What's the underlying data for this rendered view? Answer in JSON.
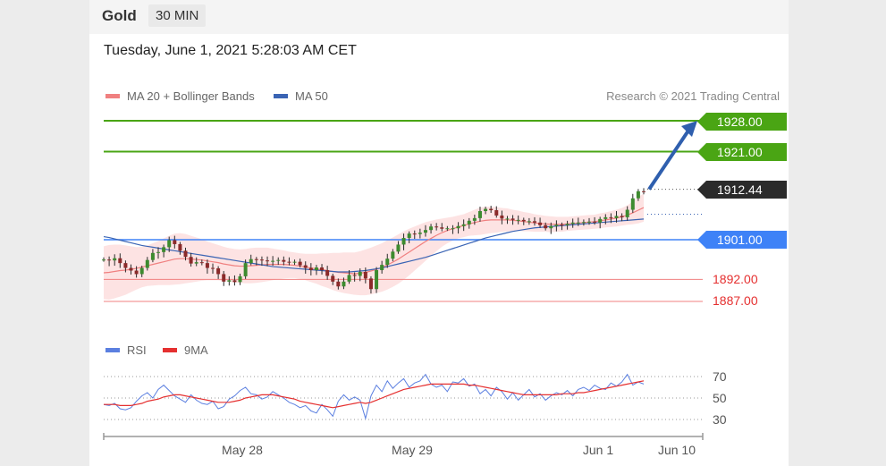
{
  "header": {
    "instrument": "Gold",
    "timeframe": "30 MIN",
    "datetime": "Tuesday, June 1, 2021 5:28:03 AM CET"
  },
  "legend": {
    "ma20": "MA 20 + Bollinger Bands",
    "ma50": "MA 50",
    "rsi": "RSI",
    "ma9": "9MA"
  },
  "credit": "Research © 2021 Trading Central",
  "colors": {
    "ma20": "#f08080",
    "ma50": "#3a64b4",
    "bollinger_fill": "#fde0e0",
    "resistance": "#4aa514",
    "support": "#3e82f7",
    "minor_support": "#f08080",
    "price_tag": "#2b2b2b",
    "arrow": "#2f5fae",
    "rsi": "#5b7fe0",
    "rsi_ma": "#e53030"
  },
  "levels": {
    "r2": "1928.00",
    "r1": "1921.00",
    "last": "1912.44",
    "pivot": "1901.00",
    "s1": "1892.00",
    "s2": "1887.00"
  },
  "chart_data": {
    "type": "candlestick",
    "ylim": [
      1885,
      1932
    ],
    "x_labels": [
      "May 28",
      "May 29",
      "Jun 1",
      "Jun 10"
    ],
    "price_path": [
      1896.5,
      1896.3,
      1896.8,
      1895.7,
      1894.6,
      1894.0,
      1893.2,
      1894.6,
      1896.4,
      1898.0,
      1898.2,
      1899.3,
      1900.9,
      1900.0,
      1898.5,
      1897.1,
      1895.6,
      1895.9,
      1895.7,
      1894.6,
      1894.5,
      1893.2,
      1891.5,
      1891.8,
      1891.4,
      1892.7,
      1895.7,
      1896.6,
      1896.5,
      1896.3,
      1896.1,
      1896.2,
      1896.4,
      1896.0,
      1895.9,
      1896.0,
      1895.2,
      1894.6,
      1894.1,
      1894.7,
      1894.1,
      1892.8,
      1891.5,
      1890.4,
      1891.5,
      1893.0,
      1892.8,
      1893.7,
      1892.2,
      1889.8,
      1894.1,
      1895.3,
      1896.7,
      1898.3,
      1899.9,
      1901.4,
      1902.4,
      1902.3,
      1902.6,
      1903.2,
      1904.0,
      1903.8,
      1903.5,
      1903.6,
      1903.6,
      1904.1,
      1904.5,
      1905.3,
      1905.9,
      1907.5,
      1908.0,
      1907.7,
      1906.5,
      1905.8,
      1905.8,
      1905.5,
      1905.5,
      1905.2,
      1905.2,
      1904.9,
      1904.3,
      1903.6,
      1904.1,
      1904.4,
      1904.3,
      1904.6,
      1904.9,
      1904.9,
      1905.0,
      1905.1,
      1904.9,
      1905.7,
      1906.1,
      1905.9,
      1906.4,
      1906.1,
      1907.8,
      1910.4,
      1912.0,
      1911.8
    ],
    "ma20": [
      1893.5,
      1893.6,
      1893.8,
      1894.0,
      1894.1,
      1894.3,
      1894.5,
      1894.8,
      1895.1,
      1895.4,
      1895.7,
      1896.0,
      1896.3,
      1896.6,
      1896.7,
      1896.7,
      1896.6,
      1896.5,
      1896.4,
      1896.2,
      1896.0,
      1895.8,
      1895.5,
      1895.3,
      1895.1,
      1895.0,
      1895.0,
      1895.1,
      1895.2,
      1895.3,
      1895.4,
      1895.4,
      1895.4,
      1895.4,
      1895.3,
      1895.2,
      1895.0,
      1894.8,
      1894.6,
      1894.4,
      1894.2,
      1894.0,
      1893.8,
      1893.6,
      1893.5,
      1893.4,
      1893.3,
      1893.4,
      1893.6,
      1893.9,
      1894.3,
      1894.7,
      1895.3,
      1895.9,
      1896.6,
      1897.4,
      1898.2,
      1899.0,
      1899.8,
      1900.6,
      1901.3,
      1902.0,
      1902.6,
      1903.1,
      1903.5,
      1903.9,
      1904.2,
      1904.6,
      1904.9,
      1905.2,
      1905.4,
      1905.5,
      1905.5,
      1905.5,
      1905.5,
      1905.4,
      1905.3,
      1905.1,
      1905.0,
      1904.8,
      1904.7,
      1904.6,
      1904.5,
      1904.5,
      1904.5,
      1904.6,
      1904.7,
      1904.8,
      1904.9,
      1905.0,
      1905.1,
      1905.3,
      1905.5,
      1905.7,
      1905.9,
      1906.2,
      1906.6,
      1907.1,
      1907.7,
      1908.3
    ],
    "ma50": [
      1901.7,
      1901.5,
      1901.2,
      1900.9,
      1900.6,
      1900.3,
      1900.0,
      1899.7,
      1899.5,
      1899.3,
      1899.1,
      1898.9,
      1898.7,
      1898.5,
      1898.3,
      1898.1,
      1897.9,
      1897.7,
      1897.5,
      1897.3,
      1897.1,
      1896.9,
      1896.7,
      1896.5,
      1896.3,
      1896.1,
      1895.9,
      1895.7,
      1895.5,
      1895.3,
      1895.1,
      1894.9,
      1894.8,
      1894.7,
      1894.6,
      1894.5,
      1894.4,
      1894.3,
      1894.2,
      1894.1,
      1894.0,
      1893.9,
      1893.8,
      1893.7,
      1893.7,
      1893.7,
      1893.8,
      1893.9,
      1894.0,
      1894.2,
      1894.4,
      1894.6,
      1894.9,
      1895.2,
      1895.5,
      1895.8,
      1896.1,
      1896.4,
      1896.7,
      1897.0,
      1897.4,
      1897.8,
      1898.2,
      1898.6,
      1899.0,
      1899.4,
      1899.8,
      1900.2,
      1900.6,
      1901.0,
      1901.4,
      1901.7,
      1902.0,
      1902.3,
      1902.6,
      1902.9,
      1903.1,
      1903.3,
      1903.5,
      1903.7,
      1903.8,
      1903.9,
      1904.0,
      1904.1,
      1904.2,
      1904.3,
      1904.4,
      1904.5,
      1904.6,
      1904.7,
      1904.8,
      1904.9,
      1905.0,
      1905.1,
      1905.2,
      1905.3,
      1905.4,
      1905.5,
      1905.6,
      1905.7
    ],
    "bollinger_width": [
      6,
      6.2,
      6.1,
      5.9,
      5.6,
      5.2,
      4.8,
      4.6,
      4.6,
      4.8,
      5.0,
      5.3,
      5.6,
      5.8,
      5.8,
      5.6,
      5.3,
      5.0,
      4.7,
      4.4,
      4.2,
      4.0,
      3.9,
      3.8,
      3.8,
      3.8,
      3.9,
      4.0,
      4.0,
      3.9,
      3.8,
      3.6,
      3.4,
      3.2,
      3.0,
      2.9,
      2.9,
      3.0,
      3.2,
      3.4,
      3.7,
      3.9,
      4.2,
      4.4,
      4.6,
      4.7,
      4.8,
      5.0,
      5.2,
      5.3,
      5.4,
      5.5,
      5.6,
      5.6,
      5.6,
      5.5,
      5.3,
      5.0,
      4.7,
      4.4,
      4.0,
      3.6,
      3.2,
      2.9,
      2.7,
      2.6,
      2.6,
      2.7,
      2.9,
      3.1,
      3.1,
      3.0,
      2.9,
      2.7,
      2.6,
      2.4,
      2.3,
      2.2,
      2.1,
      2.0,
      1.9,
      1.8,
      1.8,
      1.7,
      1.7,
      1.6,
      1.6,
      1.6,
      1.6,
      1.6,
      1.6,
      1.7,
      1.7,
      1.8,
      1.9,
      2.0,
      2.2,
      2.6,
      3.0,
      3.2
    ],
    "rsi": {
      "levels": [
        70,
        50,
        30
      ],
      "ylim": [
        20,
        80
      ],
      "rsi_values": [
        44,
        43,
        45,
        40,
        39,
        41,
        47,
        52,
        55,
        50,
        58,
        62,
        57,
        52,
        49,
        46,
        53,
        48,
        45,
        44,
        47,
        40,
        42,
        49,
        52,
        57,
        60,
        54,
        53,
        49,
        51,
        56,
        53,
        50,
        46,
        44,
        41,
        43,
        38,
        36,
        44,
        39,
        33,
        47,
        53,
        48,
        51,
        48,
        31,
        52,
        62,
        56,
        66,
        59,
        64,
        68,
        60,
        64,
        66,
        72,
        63,
        60,
        62,
        56,
        65,
        64,
        68,
        61,
        63,
        54,
        58,
        52,
        60,
        56,
        49,
        55,
        48,
        53,
        58,
        51,
        54,
        48,
        52,
        55,
        53,
        57,
        52,
        58,
        60,
        57,
        62,
        59,
        58,
        64,
        61,
        65,
        72,
        62,
        65,
        63
      ],
      "ma9_values": [
        44,
        44,
        44,
        43,
        43,
        43,
        44,
        45,
        47,
        48,
        49,
        51,
        52,
        53,
        53,
        52,
        51,
        50,
        49,
        48,
        47,
        46,
        46,
        46,
        47,
        48,
        50,
        51,
        52,
        53,
        53,
        53,
        52,
        51,
        50,
        49,
        47,
        46,
        45,
        44,
        43,
        42,
        41,
        42,
        43,
        44,
        45,
        46,
        45,
        46,
        48,
        50,
        52,
        54,
        56,
        58,
        59,
        60,
        61,
        62,
        63,
        63,
        63,
        63,
        63,
        63,
        63,
        62,
        62,
        61,
        60,
        59,
        58,
        57,
        56,
        55,
        54,
        53,
        53,
        53,
        53,
        53,
        53,
        53,
        54,
        54,
        54,
        55,
        55,
        56,
        57,
        58,
        59,
        60,
        61,
        62,
        63,
        64,
        65,
        66
      ]
    },
    "forecast": {
      "from": 1912.44,
      "to": 1928.0
    }
  }
}
